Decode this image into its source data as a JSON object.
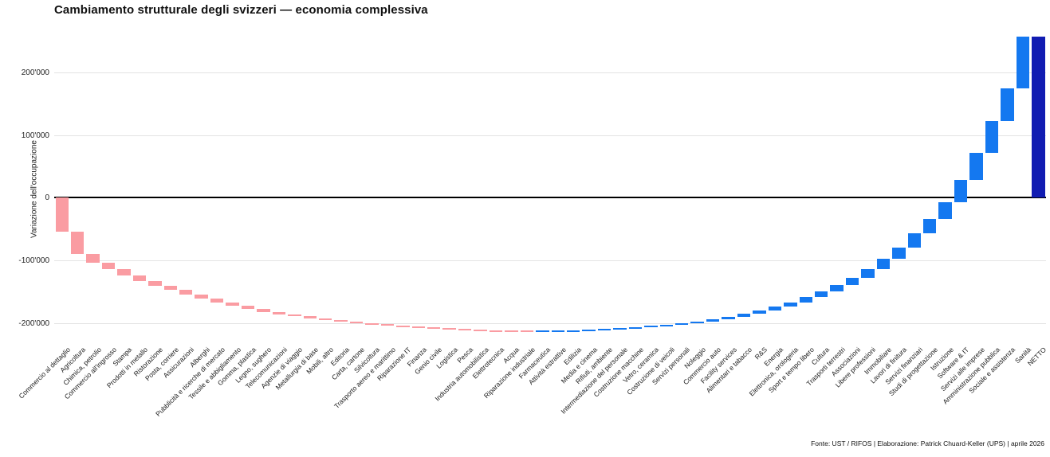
{
  "header": {
    "title": "Cambiamento strutturale degli svizzeri — economia complessiva"
  },
  "footer": {
    "source_note": "Fonte: UST / RIFOS | Elaborazione: Patrick Chuard-Keller (UPS) | aprile 2026"
  },
  "chart_data": {
    "type": "bar",
    "variant": "waterfall",
    "title": "Cambiamento strutturale degli svizzeri — economia complessiva",
    "xlabel": "",
    "ylabel": "Variazione dell'occupazione",
    "ylim": [
      -230000,
      256600
    ],
    "grid": true,
    "legend": "none",
    "ytick_labels": [
      "200'000",
      "100'000",
      "0",
      "-100'000",
      "-200'000"
    ],
    "ytick_values": [
      200000,
      100000,
      0,
      -100000,
      -200000
    ],
    "categories": [
      "Commercio al dettaglio",
      "Agricoltura",
      "Chimica, petrolio",
      "Commercio all'ingrosso",
      "Stampa",
      "Prodotti in metallo",
      "Ristorazione",
      "Posta, corriere",
      "Assicurazioni",
      "Alberghi",
      "Pubblicità e ricerche di mercato",
      "Tessile e abbigliamento",
      "Gomma, plastica",
      "Legno, sughero",
      "Telecomunicazioni",
      "Agenzie di viaggio",
      "Metallurgia di base",
      "Mobili, altro",
      "Editoria",
      "Carta, cartone",
      "Silvicoltura",
      "Trasporto aereo e marittimo",
      "Riparazione IT",
      "Finanza",
      "Genio civile",
      "Logistica",
      "Pesca",
      "Industria automobilistica",
      "Elettrotecnica",
      "Acqua",
      "Riparazione industriale",
      "Farmaceutica",
      "Attività estrattive",
      "Edilizia",
      "Media e cinema",
      "Rifiuti, ambiente",
      "Intermediazione del personale",
      "Costruzione macchine",
      "Vetro, ceramica",
      "Costruzione di veicoli",
      "Servizi personali",
      "Noleggio",
      "Commercio auto",
      "Facility services",
      "Alimentari e tabacco",
      "R&S",
      "Energia",
      "Elettronica, orologeria",
      "Sport e tempo libero",
      "Cultura",
      "Trasporti terrestri",
      "Associazioni",
      "Libere professioni",
      "Immobiliare",
      "Lavori di finitura",
      "Servizi finanziari",
      "Studi di progettazione",
      "Istruzione",
      "Software & IT",
      "Servizi alle imprese",
      "Amministrazione pubblica",
      "Sociale e assistenza",
      "Sanità",
      "NETTO"
    ],
    "values": [
      -54000,
      -35000,
      -14000,
      -11000,
      -10000,
      -8000,
      -7500,
      -7000,
      -7000,
      -6800,
      -6000,
      -5500,
      -5000,
      -4500,
      -4000,
      -3500,
      -3200,
      -2800,
      -2400,
      -2200,
      -2000,
      -1800,
      -1600,
      -1500,
      -1300,
      -1100,
      -900,
      -800,
      -600,
      -500,
      -400,
      300,
      500,
      700,
      900,
      1100,
      1300,
      1500,
      1700,
      1900,
      2200,
      2800,
      3700,
      4200,
      4800,
      5200,
      6000,
      6800,
      8000,
      9000,
      10000,
      12000,
      14400,
      16000,
      17900,
      22000,
      23200,
      27400,
      35400,
      42700,
      51200,
      51800,
      81900,
      256600
    ],
    "net_category": "NETTO",
    "net_total": 256600,
    "cumulative_min": -211900,
    "colors": {
      "decrease": "#fa9ca2",
      "increase": "#1478f0",
      "net": "#111cb2",
      "gridline": "#e3e3e3",
      "zero_line": "#000000",
      "background": "#ffffff"
    }
  }
}
